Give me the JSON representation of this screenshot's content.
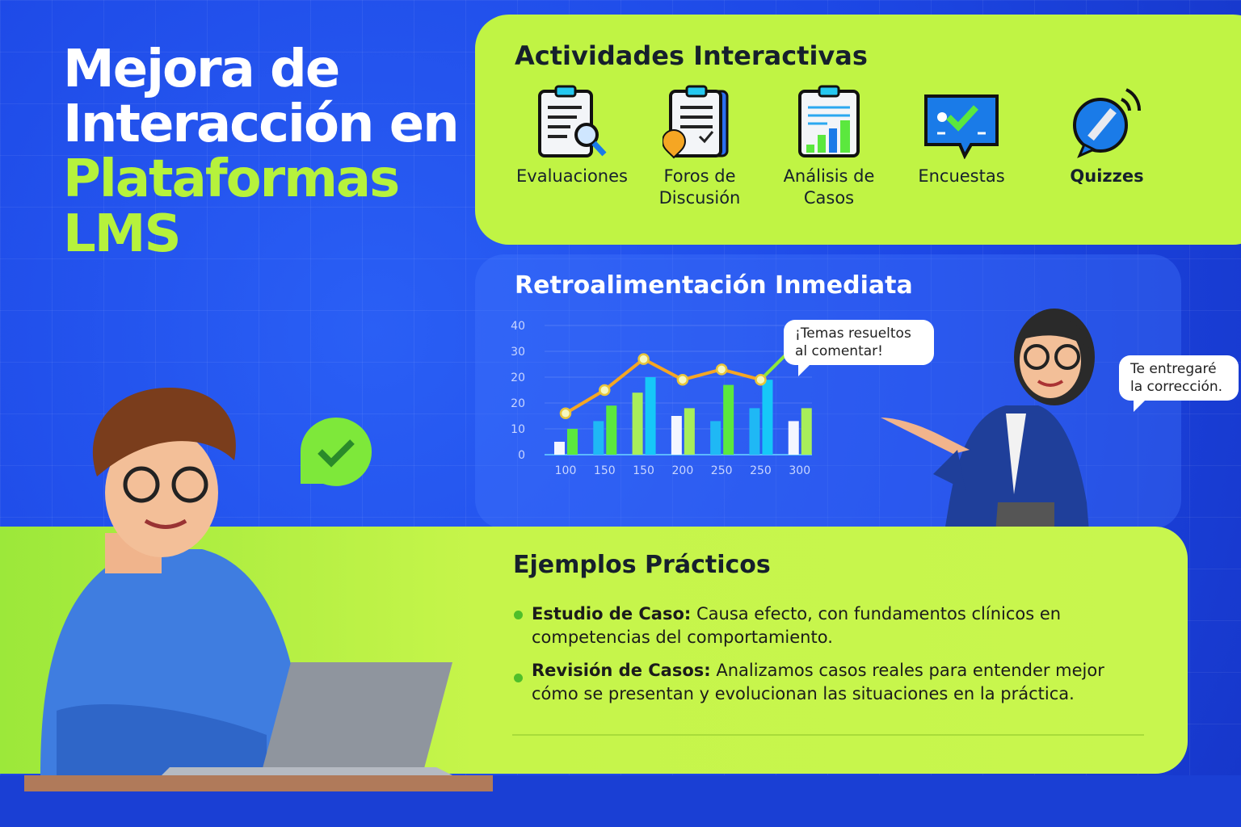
{
  "title": {
    "line1": "Mejora de",
    "line2": "Interacción en",
    "line3": "Plataformas",
    "line4": "LMS"
  },
  "activities": {
    "title": "Actividades Interactivas",
    "items": [
      {
        "label": "Evaluaciones",
        "icon": "clipboard-search-icon"
      },
      {
        "label": "Foros de Discusión",
        "icon": "clipboard-chat-icon"
      },
      {
        "label": "Análisis de Casos",
        "icon": "clipboard-chart-icon"
      },
      {
        "label": "Encuestas",
        "icon": "survey-check-icon"
      },
      {
        "label": "Quizzes",
        "icon": "quiz-pen-icon"
      }
    ]
  },
  "feedback": {
    "title": "Retroalimentación Inmediata",
    "bubble_chart": "¡Temas resueltos al comentar!",
    "bubble_teacher": "Te entregaré la corrección."
  },
  "chart_data": {
    "type": "bar",
    "title": "",
    "xlabel": "",
    "ylabel": "",
    "categories": [
      "100",
      "150",
      "150",
      "200",
      "250",
      "250",
      "300"
    ],
    "y_tick_labels": [
      "0",
      "10",
      "20",
      "20",
      "30",
      "40"
    ],
    "ylim": [
      0,
      50
    ],
    "grid": true,
    "series": [
      {
        "values": [
          5,
          13,
          24,
          15,
          13,
          18,
          13
        ],
        "colors": [
          "#f4f6ff",
          "#1fb8f5",
          "#a8ee5a",
          "#f4f6ff",
          "#1fb8f5",
          "#1fb8f5",
          "#f4f6ff"
        ]
      },
      {
        "values": [
          10,
          19,
          30,
          18,
          27,
          29,
          18
        ],
        "colors": [
          "#5be83e",
          "#5be83e",
          "#16c8f8",
          "#a8ee5a",
          "#5be83e",
          "#16c8f8",
          "#a8ee5a"
        ]
      }
    ],
    "line": {
      "type": "line",
      "values": [
        16,
        25,
        37,
        29,
        33,
        29,
        44
      ],
      "color": "#f5a623",
      "last_segment_color": "#8fe83a"
    }
  },
  "examples": {
    "title": "Ejemplos Prácticos",
    "items": [
      {
        "bold": "Estudio de Caso:",
        "text": " Causa efecto, con fundamentos clínicos en competencias del comportamiento."
      },
      {
        "bold": "Revisión de Casos:",
        "text": " Analizamos casos reales para entender mejor cómo se presentan y evolucionan las situaciones en la práctica."
      }
    ]
  },
  "colors": {
    "background": "#1d48e6",
    "accent": "#b6f23c",
    "panel": "#c0f444"
  }
}
